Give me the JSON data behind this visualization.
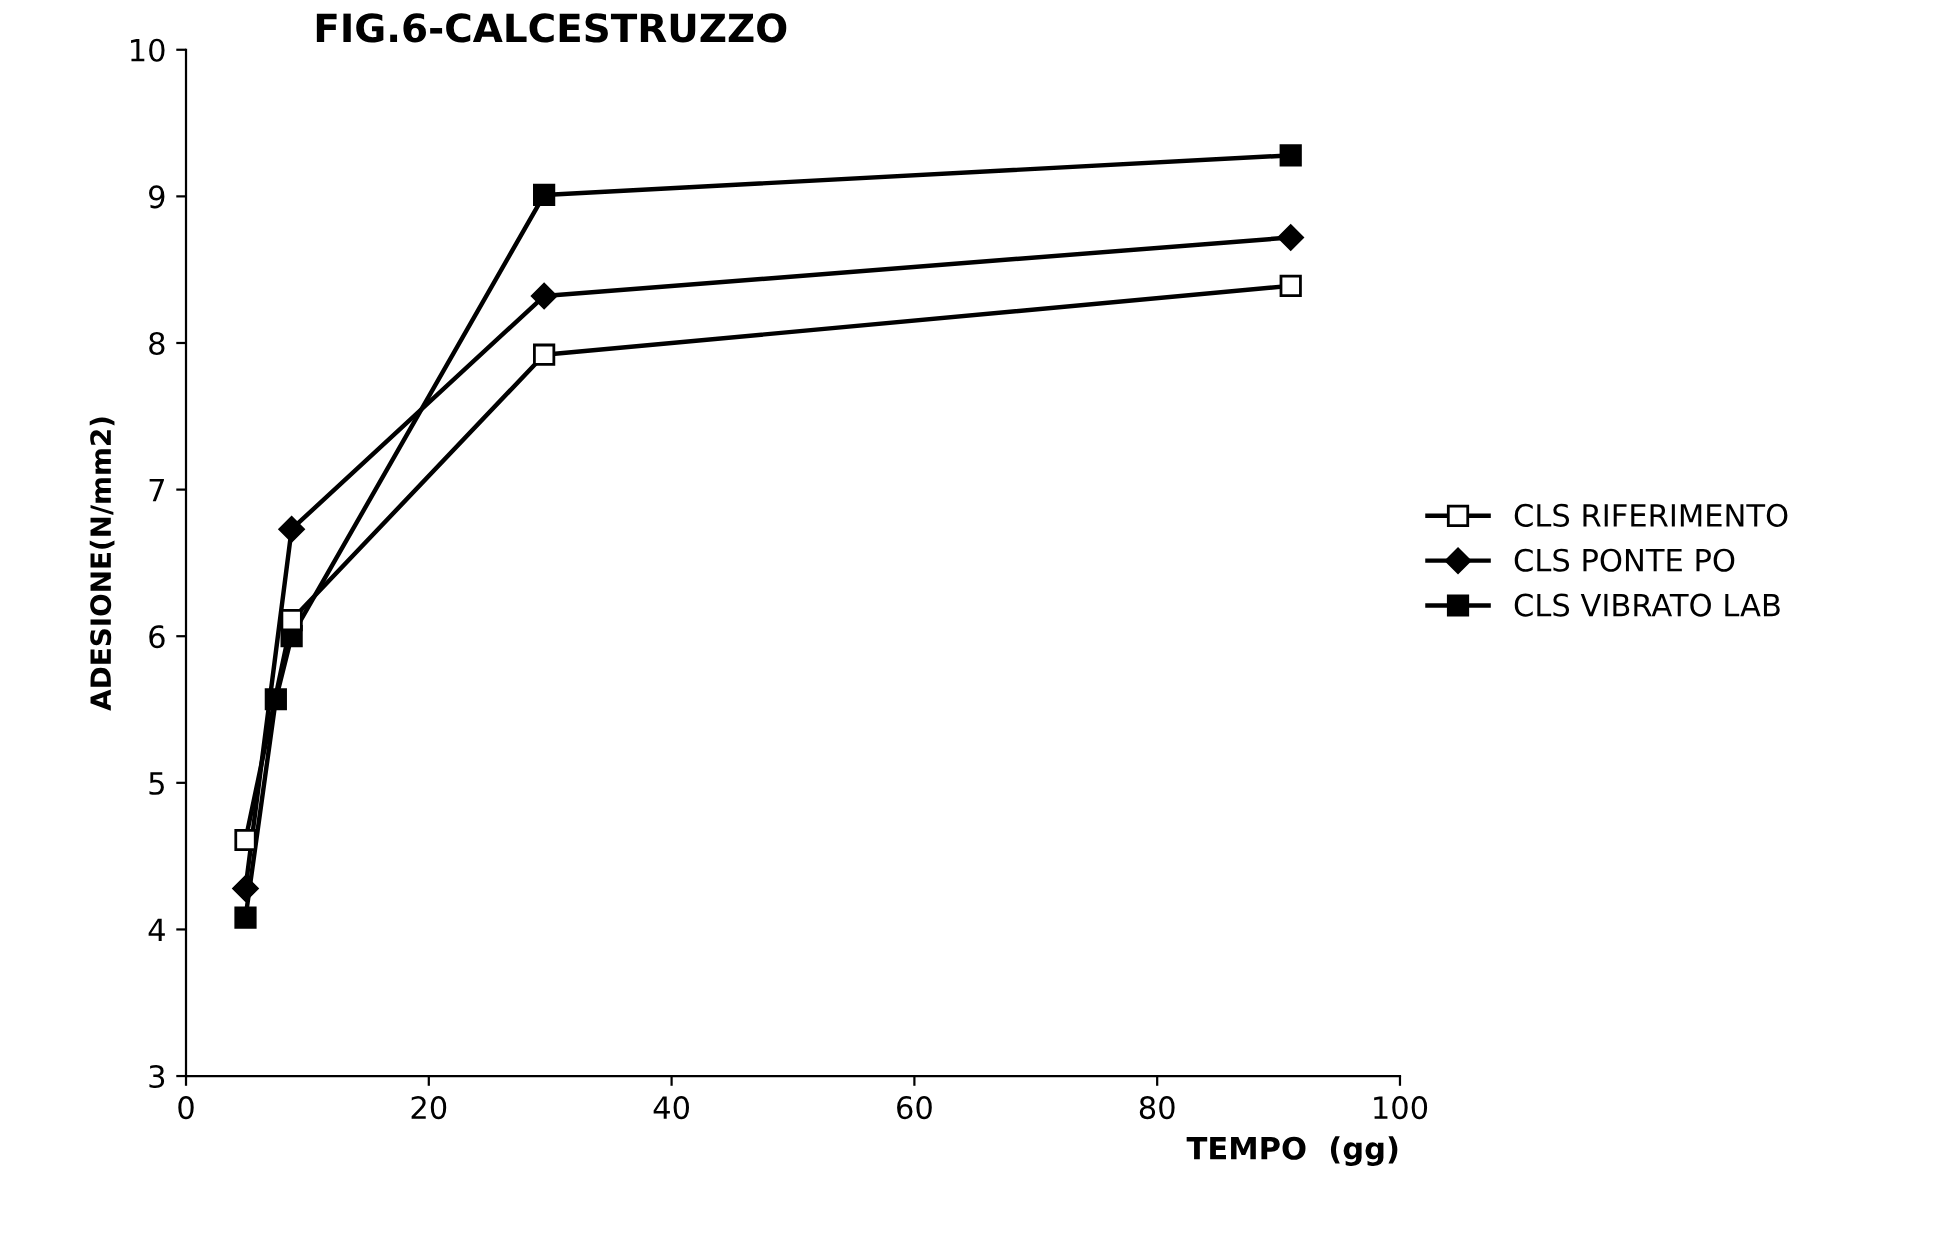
{
  "chart_data": {
    "type": "line",
    "title": "FIG.6-CALCESTRUZZO",
    "xlabel": "TEMPO  (gg)",
    "ylabel": "ADESIONE(N/mm2)",
    "xlim": [
      0,
      100
    ],
    "xticks": [
      0,
      20,
      40,
      60,
      80,
      100
    ],
    "ylim": [
      3,
      10
    ],
    "yticks": [
      3,
      4,
      5,
      6,
      7,
      8,
      9,
      10
    ],
    "grid": false,
    "legend": "right",
    "series": [
      {
        "name": "CLS RIFERIMENTO",
        "color": "#000000",
        "marker": "square_open",
        "x": [
          4.9,
          8.7,
          29.5,
          91
        ],
        "values": [
          4.61,
          6.11,
          7.92,
          8.39
        ]
      },
      {
        "name": "CLS PONTE PO",
        "color": "#000000",
        "marker": "diamond",
        "x": [
          4.9,
          8.7,
          29.5,
          91
        ],
        "values": [
          4.28,
          6.73,
          8.32,
          8.72
        ]
      },
      {
        "name": "CLS VIBRATO LAB",
        "color": "#000000",
        "marker": "square",
        "x": [
          4.9,
          7.4,
          8.7,
          29.5,
          91
        ],
        "values": [
          4.08,
          5.57,
          6.0,
          9.01,
          9.28
        ]
      }
    ]
  }
}
